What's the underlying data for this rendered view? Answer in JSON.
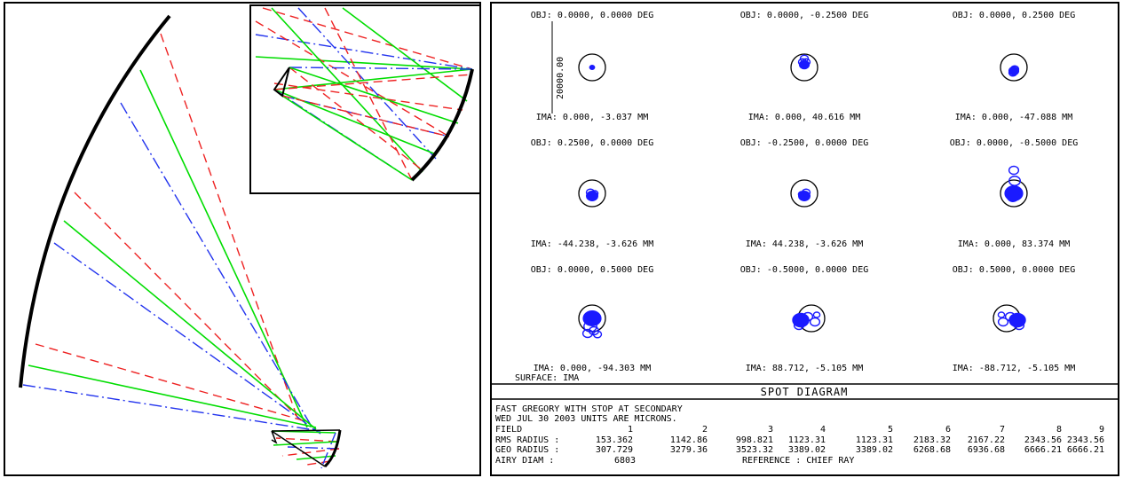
{
  "layout_diagram": {
    "colors": {
      "mirror": "#000000",
      "ray_green": "#00dd00",
      "ray_red": "#ee2222",
      "ray_blue": "#2233ee"
    }
  },
  "spot_diagram": {
    "cells": [
      {
        "obj": "OBJ: 0.0000, 0.0000 DEG",
        "ima": "IMA: 0.000, -3.037 MM"
      },
      {
        "obj": "OBJ: 0.0000, -0.2500 DEG",
        "ima": "IMA: 0.000, 40.616 MM"
      },
      {
        "obj": "OBJ: 0.0000, 0.2500 DEG",
        "ima": "IMA: 0.000, -47.088 MM"
      },
      {
        "obj": "OBJ: 0.2500, 0.0000 DEG",
        "ima": "IMA: -44.238, -3.626 MM"
      },
      {
        "obj": "OBJ: -0.2500, 0.0000 DEG",
        "ima": "IMA: 44.238, -3.626 MM"
      },
      {
        "obj": "OBJ: 0.0000, -0.5000 DEG",
        "ima": "IMA: 0.000, 83.374 MM"
      },
      {
        "obj": "OBJ: 0.0000, 0.5000 DEG",
        "ima": "IMA: 0.000, -94.303 MM"
      },
      {
        "obj": "OBJ: -0.5000, 0.0000 DEG",
        "ima": "IMA: 88.712, -5.105 MM"
      },
      {
        "obj": "OBJ: 0.5000, 0.0000 DEG",
        "ima": "IMA: -88.712, -5.105 MM"
      }
    ],
    "scale_bar_label": "20000.00",
    "surface_label": "SURFACE: IMA",
    "title": "SPOT DIAGRAM",
    "colors": {
      "spot": "#1a1aff",
      "circle": "#000000"
    },
    "info": {
      "line1": "FAST GREGORY WITH STOP AT SECONDARY",
      "line2": "WED JUL 30 2003  UNITS ARE MICRONS.",
      "field_label": "FIELD",
      "fields": [
        "1",
        "2",
        "3",
        "4",
        "5",
        "6",
        "7",
        "8",
        "9"
      ],
      "rms_label": "RMS RADIUS :",
      "rms": [
        "153.362",
        "1142.86",
        "998.821",
        "1123.31",
        "1123.31",
        "2183.32",
        "2167.22",
        "2343.56",
        "2343.56"
      ],
      "geo_label": "GEO RADIUS :",
      "geo": [
        "307.729",
        "3279.36",
        "3523.32",
        "3389.02",
        "3389.02",
        "6268.68",
        "6936.68",
        "6666.21",
        "6666.21"
      ],
      "airy_label": "AIRY DIAM  :",
      "airy": "6803",
      "reference": "REFERENCE  : CHIEF RAY"
    }
  }
}
